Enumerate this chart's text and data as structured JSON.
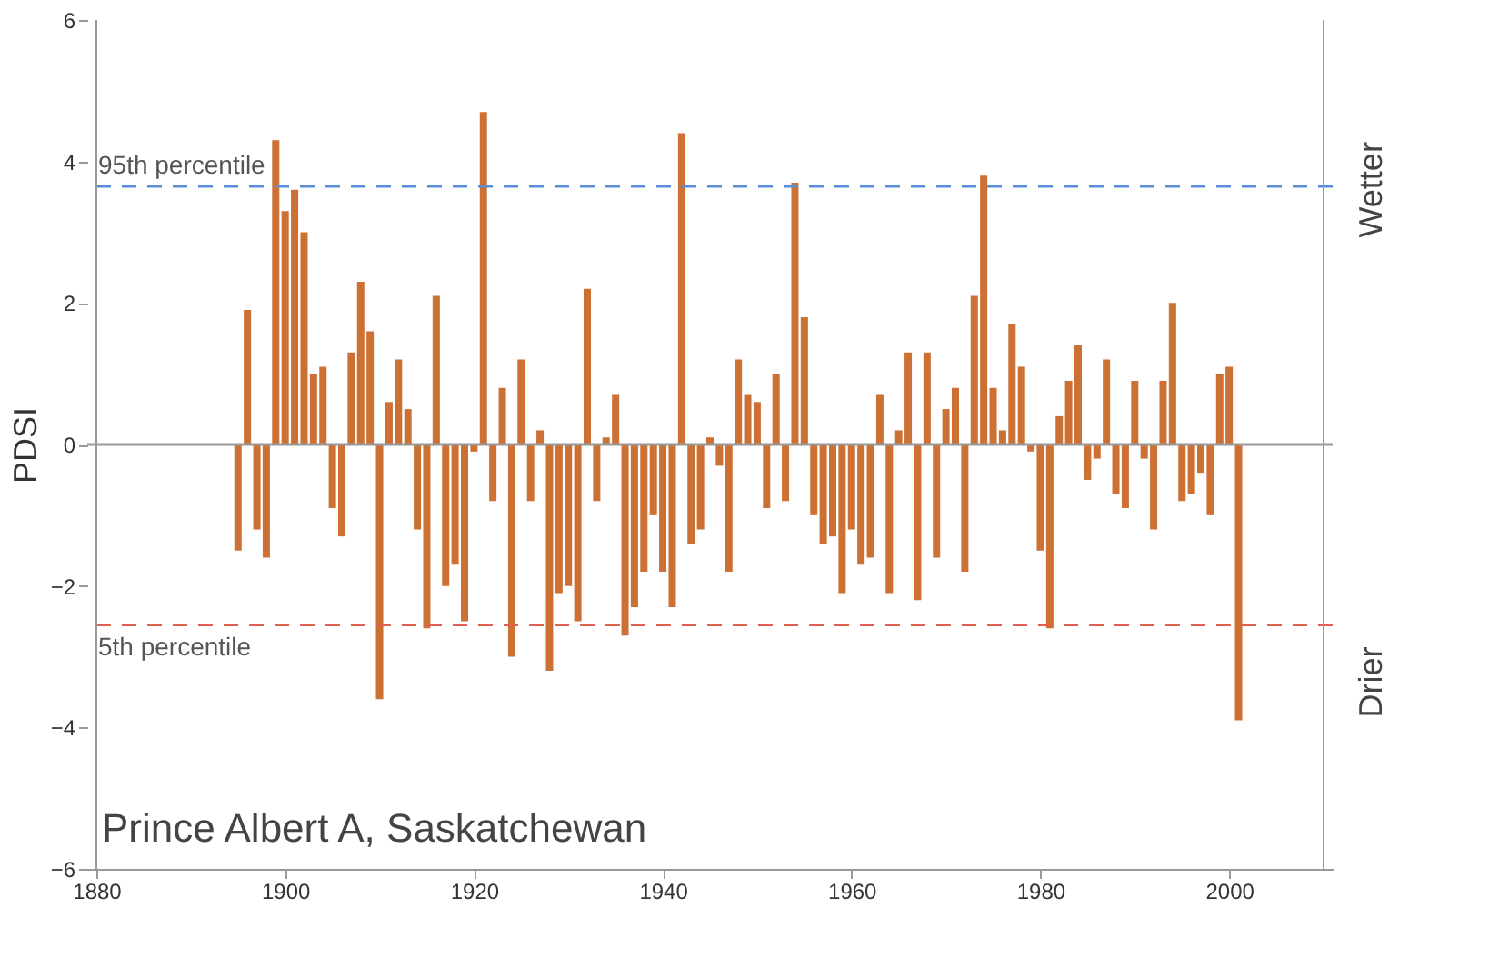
{
  "chart_data": {
    "type": "bar",
    "ylabel": "PDSI",
    "x": [
      1895,
      1896,
      1897,
      1898,
      1899,
      1900,
      1901,
      1902,
      1903,
      1904,
      1905,
      1906,
      1907,
      1908,
      1909,
      1910,
      1911,
      1912,
      1913,
      1914,
      1915,
      1916,
      1917,
      1918,
      1919,
      1920,
      1921,
      1922,
      1923,
      1924,
      1925,
      1926,
      1927,
      1928,
      1929,
      1930,
      1931,
      1932,
      1933,
      1934,
      1935,
      1936,
      1937,
      1938,
      1939,
      1940,
      1941,
      1942,
      1943,
      1944,
      1945,
      1946,
      1947,
      1948,
      1949,
      1950,
      1951,
      1952,
      1953,
      1954,
      1955,
      1956,
      1957,
      1958,
      1959,
      1960,
      1961,
      1962,
      1963,
      1964,
      1965,
      1966,
      1967,
      1968,
      1969,
      1970,
      1971,
      1972,
      1973,
      1974,
      1975,
      1976,
      1977,
      1978,
      1979,
      1980,
      1981,
      1982,
      1983,
      1984,
      1985,
      1986,
      1987,
      1988,
      1989,
      1990,
      1991,
      1992,
      1993,
      1994,
      1995,
      1996,
      1997,
      1998,
      1999,
      2000,
      2001
    ],
    "values": [
      -1.5,
      1.9,
      -1.2,
      -1.6,
      4.3,
      3.3,
      3.6,
      3.0,
      1.0,
      1.1,
      -0.9,
      -1.3,
      1.3,
      2.3,
      1.6,
      -3.6,
      0.6,
      1.2,
      0.5,
      -1.2,
      -2.6,
      2.1,
      -2.0,
      -1.7,
      -2.5,
      -0.1,
      4.7,
      -0.8,
      0.8,
      -3.0,
      1.2,
      -0.8,
      0.2,
      -3.2,
      -2.1,
      -2.0,
      -2.5,
      2.2,
      -0.8,
      0.1,
      0.7,
      -2.7,
      -2.3,
      -1.8,
      -1.0,
      -1.8,
      -2.3,
      4.4,
      -1.4,
      -1.2,
      0.1,
      -0.3,
      -1.8,
      1.2,
      0.7,
      0.6,
      -0.9,
      1.0,
      -0.8,
      3.7,
      1.8,
      -1.0,
      -1.4,
      -1.3,
      -2.1,
      -1.2,
      -1.7,
      -1.6,
      0.7,
      -2.1,
      0.2,
      1.3,
      -2.2,
      1.3,
      -1.6,
      0.5,
      0.8,
      -1.8,
      2.1,
      3.8,
      0.8,
      0.2,
      1.7,
      1.1,
      -0.1,
      -1.5,
      -2.6,
      0.4,
      0.9,
      1.4,
      -0.5,
      -0.2,
      1.2,
      -0.7,
      -0.9,
      0.9,
      -0.2,
      -1.2,
      0.9,
      2.0,
      -0.8,
      -0.7,
      -0.4,
      -1.0,
      1.0,
      1.1,
      -3.9
    ],
    "color": "#cc7033",
    "xlim": [
      1880,
      2010
    ],
    "xticks": [
      1880,
      1900,
      1920,
      1940,
      1960,
      1980,
      2000
    ],
    "ylim": [
      -6,
      6
    ],
    "yticks": [
      -6,
      -4,
      -2,
      0,
      2,
      4,
      6
    ],
    "grid": false,
    "ref_lines": [
      {
        "axis": "y",
        "value": 0,
        "label": null,
        "color": "#999999",
        "line_style": "solid"
      },
      {
        "axis": "y",
        "value": 3.65,
        "label": "95th percentile",
        "color": "#5b8ed6",
        "line_style": "dashed"
      },
      {
        "axis": "y",
        "value": -2.55,
        "label": "5th percentile",
        "color": "#e06050",
        "line_style": "dashed"
      }
    ],
    "annotations": [
      "Prince Albert A, Saskatchewan",
      "Wetter",
      "Drier"
    ]
  }
}
